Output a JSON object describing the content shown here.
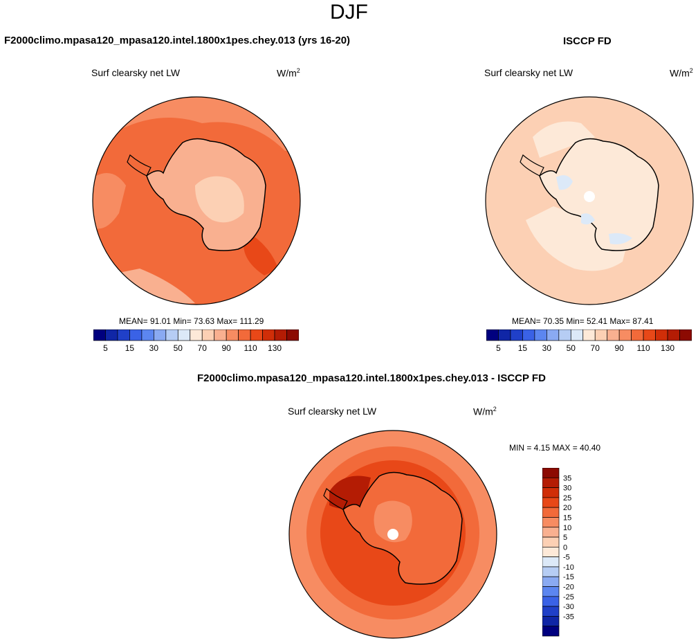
{
  "page": {
    "season": "DJF"
  },
  "panels": [
    {
      "id": "model",
      "title": "F2000climo.mpasa120_mpasa120.intel.1800x1pes.chey.013 (yrs 16-20)",
      "variable": "Surf clearsky net LW",
      "units_base": "W/m",
      "units_exp": "2",
      "stats": "MEAN=  91.01  Min=  73.63  Max= 111.29"
    },
    {
      "id": "obs",
      "title": "ISCCP FD",
      "variable": "Surf clearsky net LW",
      "units_base": "W/m",
      "units_exp": "2",
      "stats": "MEAN=  70.35  Min=  52.41  Max=  87.41"
    },
    {
      "id": "diff",
      "title": "F2000climo.mpasa120_mpasa120.intel.1800x1pes.chey.013 - ISCCP FD",
      "variable": "Surf clearsky net LW",
      "units_base": "W/m",
      "units_exp": "2",
      "minmax": "MIN =   4.15 MAX =  40.40"
    }
  ],
  "colorbars": {
    "abs": {
      "colors": [
        "#00007f",
        "#1026a6",
        "#2040c8",
        "#3a62e6",
        "#5c86f0",
        "#8aaaf2",
        "#b6cdf4",
        "#dce9f8",
        "#fde9d8",
        "#fcd0b4",
        "#f9b090",
        "#f78c62",
        "#f26a3a",
        "#e84818",
        "#d02e08",
        "#b41c04",
        "#8c0a02"
      ],
      "tick_labels": [
        "5",
        "15",
        "30",
        "50",
        "70",
        "90",
        "110",
        "130"
      ]
    },
    "diff": {
      "colors": [
        "#8c0a02",
        "#b41c04",
        "#d02e08",
        "#e84818",
        "#f26a3a",
        "#f78c62",
        "#f9b090",
        "#fcd0b4",
        "#fde9d8",
        "#dce9f8",
        "#b6cdf4",
        "#8aaaf2",
        "#5c86f0",
        "#3a62e6",
        "#2040c8",
        "#1026a6",
        "#00007f"
      ],
      "tick_labels": [
        "35",
        "30",
        "25",
        "20",
        "15",
        "10",
        "5",
        "0",
        "-5",
        "-10",
        "-15",
        "-20",
        "-25",
        "-30",
        "-35"
      ]
    }
  },
  "chart_data": [
    {
      "type": "heatmap",
      "projection": "south polar stereographic",
      "title": "F2000climo.mpasa120_mpasa120.intel.1800x1pes.chey.013 (yrs 16-20)",
      "variable": "Surf clearsky net LW",
      "units": "W/m2",
      "mean": 91.01,
      "min": 73.63,
      "max": 111.29,
      "contour_levels": [
        5,
        10,
        15,
        20,
        25,
        30,
        40,
        50,
        60,
        70,
        80,
        90,
        100,
        110,
        120,
        130
      ],
      "colorbar_ticks": [
        5,
        15,
        30,
        50,
        70,
        90,
        110,
        130
      ]
    },
    {
      "type": "heatmap",
      "projection": "south polar stereographic",
      "title": "ISCCP FD",
      "variable": "Surf clearsky net LW",
      "units": "W/m2",
      "mean": 70.35,
      "min": 52.41,
      "max": 87.41,
      "contour_levels": [
        5,
        10,
        15,
        20,
        25,
        30,
        40,
        50,
        60,
        70,
        80,
        90,
        100,
        110,
        120,
        130
      ],
      "colorbar_ticks": [
        5,
        15,
        30,
        50,
        70,
        90,
        110,
        130
      ]
    },
    {
      "type": "heatmap",
      "projection": "south polar stereographic",
      "title": "F2000climo.mpasa120_mpasa120.intel.1800x1pes.chey.013 - ISCCP FD",
      "variable": "Surf clearsky net LW",
      "units": "W/m2",
      "min": 4.15,
      "max": 40.4,
      "contour_levels": [
        -35,
        -30,
        -25,
        -20,
        -15,
        -10,
        -5,
        0,
        5,
        10,
        15,
        20,
        25,
        30,
        35
      ],
      "colorbar_ticks": [
        35,
        30,
        25,
        20,
        15,
        10,
        5,
        0,
        -5,
        -10,
        -15,
        -20,
        -25,
        -30,
        -35
      ]
    }
  ]
}
